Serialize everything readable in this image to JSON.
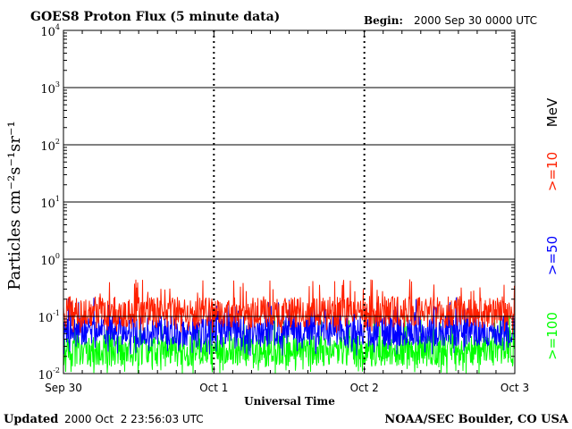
{
  "header": {
    "title": "GOES8 Proton Flux (5 minute data)",
    "begin_label": "Begin:",
    "begin_value": "2000 Sep 30 0000 UTC"
  },
  "footer": {
    "updated_label": "Updated",
    "updated_value": "2000 Oct  2 23:56:03 UTC",
    "credit": "NOAA/SEC Boulder, CO USA"
  },
  "colors": {
    "ge10": "#ff2000",
    "ge50": "#0000ff",
    "ge100": "#00ff00",
    "axis": "#000000",
    "background": "#ffffff"
  },
  "chart_data": {
    "type": "line",
    "title": "GOES8 Proton Flux (5 minute data)",
    "xlabel": "Universal Time",
    "ylabel": "Particles cm⁻²s⁻¹sr⁻¹",
    "y_scale": "log",
    "ylim": [
      0.01,
      10000
    ],
    "y_ticks": [
      {
        "value": 0.01,
        "base": "10",
        "exp": "-2"
      },
      {
        "value": 0.1,
        "base": "10",
        "exp": "-1"
      },
      {
        "value": 1,
        "base": "10",
        "exp": "0"
      },
      {
        "value": 10,
        "base": "10",
        "exp": "1"
      },
      {
        "value": 100,
        "base": "10",
        "exp": "2"
      },
      {
        "value": 1000,
        "base": "10",
        "exp": "3"
      },
      {
        "value": 10000,
        "base": "10",
        "exp": "4"
      }
    ],
    "x_ticks": [
      "Sep 30",
      "Oct 1",
      "Oct 2",
      "Oct 3"
    ],
    "xlim": [
      "2000-09-30",
      "2000-10-03"
    ],
    "grid": true,
    "legend_placement": "right",
    "unit_label": "MeV",
    "series": [
      {
        "name": ">=10",
        "color": "#ff2000",
        "typical": 0.12,
        "min": 0.05,
        "max": 0.45
      },
      {
        "name": ">=50",
        "color": "#0000ff",
        "typical": 0.055,
        "min": 0.02,
        "max": 0.22
      },
      {
        "name": ">=100",
        "color": "#00ff00",
        "typical": 0.025,
        "min": 0.01,
        "max": 0.11
      }
    ]
  }
}
